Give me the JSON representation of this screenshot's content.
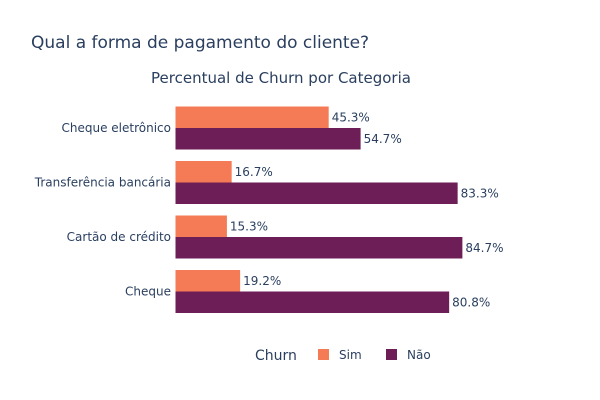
{
  "page": {
    "title": "Qual a forma de pagamento do cliente?"
  },
  "chart_data": {
    "type": "bar",
    "orientation": "horizontal",
    "title": "Percentual de Churn por Categoria",
    "categories": [
      "Cheque eletrônico",
      "Transferência bancária",
      "Cartão de crédito",
      "Cheque"
    ],
    "series": [
      {
        "name": "Sim",
        "color": "#f47b55",
        "values": [
          45.3,
          16.7,
          15.3,
          19.2
        ],
        "labels": [
          "45.3%",
          "16.7%",
          "15.3%",
          "19.2%"
        ]
      },
      {
        "name": "Não",
        "color": "#6e1e57",
        "values": [
          54.7,
          83.3,
          84.7,
          80.8
        ],
        "labels": [
          "54.7%",
          "83.3%",
          "84.7%",
          "80.8%"
        ]
      }
    ],
    "xlim": [
      0,
      100
    ],
    "legend": {
      "title": "Churn",
      "placement": "bottom"
    },
    "grid": false
  }
}
